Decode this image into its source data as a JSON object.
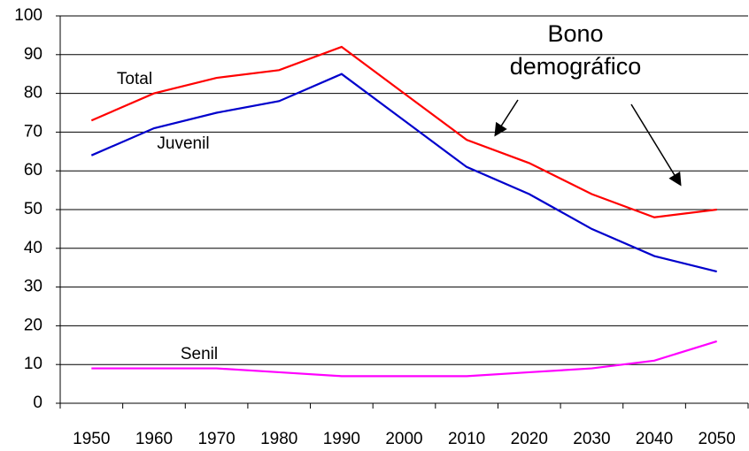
{
  "chart_data": {
    "type": "line",
    "annotation": [
      "Bono",
      "demográfico"
    ],
    "categories": [
      "1950",
      "1960",
      "1970",
      "1980",
      "1990",
      "2000",
      "2010",
      "2020",
      "2030",
      "2040",
      "2050"
    ],
    "series": [
      {
        "name": "Total",
        "color": "#ff0000",
        "values": [
          73,
          80,
          84,
          86,
          92,
          80,
          68,
          62,
          54,
          48,
          50
        ]
      },
      {
        "name": "Juvenil",
        "color": "#0000cc",
        "values": [
          64,
          71,
          75,
          78,
          85,
          73,
          61,
          54,
          45,
          38,
          34
        ]
      },
      {
        "name": "Senil",
        "color": "#ff00ff",
        "values": [
          9,
          9,
          9,
          8,
          7,
          7,
          7,
          8,
          9,
          11,
          16
        ]
      }
    ],
    "ylim": [
      0,
      100
    ],
    "yticks": [
      0,
      10,
      20,
      30,
      40,
      50,
      60,
      70,
      80,
      90,
      100
    ],
    "grid": true
  }
}
